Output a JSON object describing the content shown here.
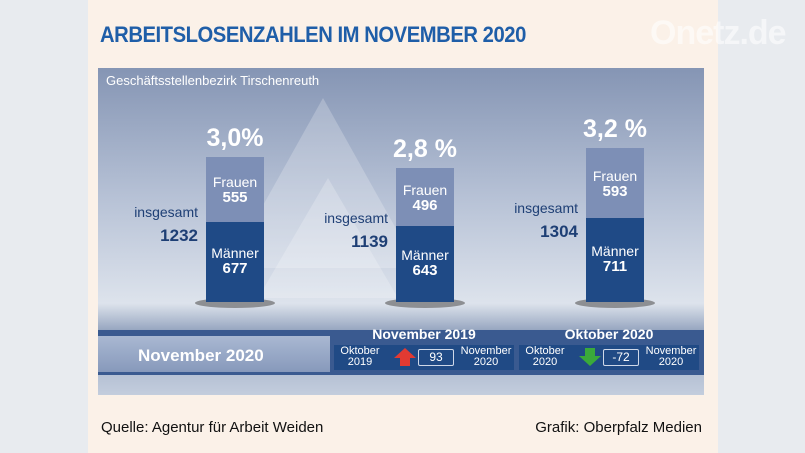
{
  "title": "ARBEITSLOSENZAHLEN IM NOVEMBER 2020",
  "chart_data": {
    "type": "bar",
    "subtitle": "Geschäftsstellenbezirk Tirschenreuth",
    "stacked": true,
    "columns": [
      {
        "percent": "3,0%",
        "total_label": "insgesamt",
        "total": 1232,
        "frauen_label": "Frauen",
        "frauen": 555,
        "maenner_label": "Männer",
        "maenner": 677
      },
      {
        "percent": "2,8 %",
        "total_label": "insgesamt",
        "total": 1139,
        "frauen_label": "Frauen",
        "frauen": 496,
        "maenner_label": "Männer",
        "maenner": 643
      },
      {
        "percent": "3,2 %",
        "total_label": "insgesamt",
        "total": 1304,
        "frauen_label": "Frauen",
        "frauen": 593,
        "maenner_label": "Männer",
        "maenner": 711
      }
    ],
    "colors": {
      "frauen": "#7d8fb6",
      "maenner": "#1f4a86",
      "up": "#e23a32",
      "down": "#3aaa3a"
    },
    "current_label": "November 2020",
    "comparisons": [
      {
        "title": "November 2019",
        "from": [
          "Oktober",
          "2019"
        ],
        "value": "93",
        "direction": "up",
        "to": [
          "November",
          "2020"
        ]
      },
      {
        "title": "Oktober 2020",
        "from": [
          "Oktober",
          "2020"
        ],
        "value": "-72",
        "direction": "down",
        "to": [
          "November",
          "2020"
        ]
      }
    ]
  },
  "footer": {
    "source": "Quelle: Agentur für Arbeit Weiden",
    "credit": "Grafik: Oberpfalz Medien"
  },
  "watermark": "Onetz.de"
}
